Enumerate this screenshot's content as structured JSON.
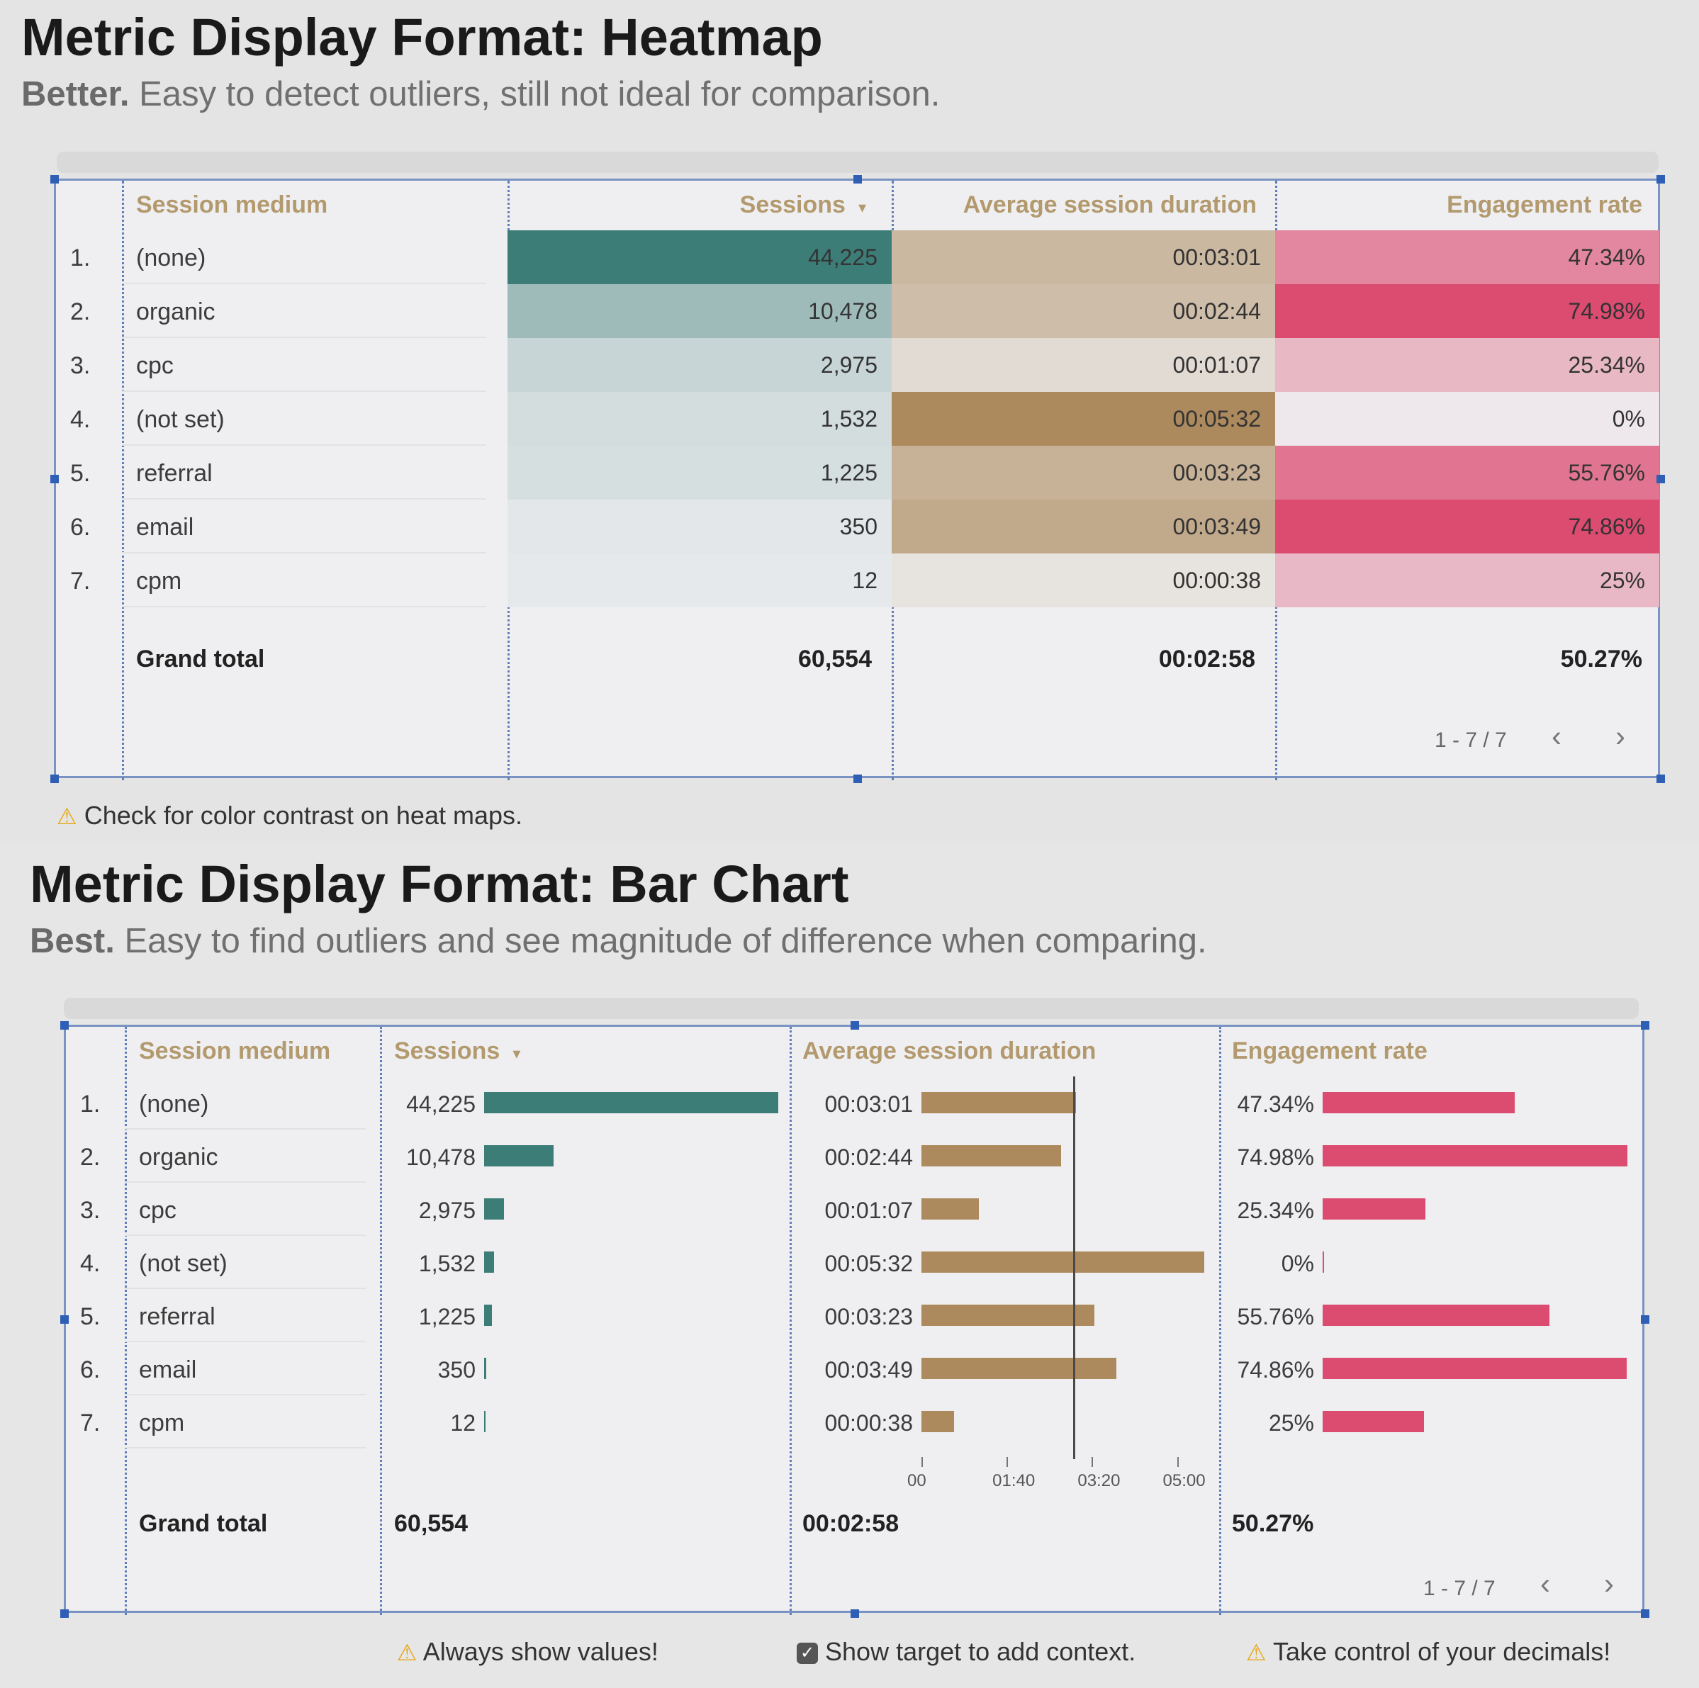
{
  "colors": {
    "teal": "#3d7d78",
    "tan": "#ad8a5d",
    "pink": "#dc4b70"
  },
  "heatmap": {
    "title": "Metric Display Format: Heatmap",
    "sub_bold": "Better.",
    "sub_text": " Easy to detect outliers, still not ideal for comparison.",
    "note": "Check for color contrast on heat maps."
  },
  "barchart": {
    "title": "Metric Display Format: Bar Chart",
    "sub_bold": "Best.",
    "sub_text": " Easy to find outliers and see magnitude of difference when comparing.",
    "notes": [
      "Always show values!",
      "Show target to add context.",
      "Take control of your decimals!"
    ]
  },
  "table": {
    "headers": {
      "medium": "Session medium",
      "sessions": "Sessions",
      "sort_glyph": "▾",
      "duration": "Average session duration",
      "engagement": "Engagement rate"
    },
    "rows": [
      {
        "num": "1.",
        "medium": "(none)",
        "sessions": "44,225",
        "duration": "00:03:01",
        "engagement": "47.34%"
      },
      {
        "num": "2.",
        "medium": "organic",
        "sessions": "10,478",
        "duration": "00:02:44",
        "engagement": "74.98%"
      },
      {
        "num": "3.",
        "medium": "cpc",
        "sessions": "2,975",
        "duration": "00:01:07",
        "engagement": "25.34%"
      },
      {
        "num": "4.",
        "medium": "(not set)",
        "sessions": "1,532",
        "duration": "00:05:32",
        "engagement": "0%"
      },
      {
        "num": "5.",
        "medium": "referral",
        "sessions": "1,225",
        "duration": "00:03:23",
        "engagement": "55.76%"
      },
      {
        "num": "6.",
        "medium": "email",
        "sessions": "350",
        "duration": "00:03:49",
        "engagement": "74.86%"
      },
      {
        "num": "7.",
        "medium": "cpm",
        "sessions": "12",
        "duration": "00:00:38",
        "engagement": "25%"
      }
    ],
    "totals": {
      "label": "Grand total",
      "sessions": "60,554",
      "duration": "00:02:58",
      "engagement": "50.27%"
    },
    "pager": "1 - 7 / 7",
    "prev": "‹",
    "next": "›"
  },
  "chart_data": {
    "type": "table",
    "columns": [
      "Session medium",
      "Sessions",
      "Average session duration (seconds)",
      "Engagement rate (%)"
    ],
    "rows": [
      {
        "medium": "(none)",
        "sessions": 44225,
        "duration_s": 181,
        "engagement_pct": 47.34
      },
      {
        "medium": "organic",
        "sessions": 10478,
        "duration_s": 164,
        "engagement_pct": 74.98
      },
      {
        "medium": "cpc",
        "sessions": 2975,
        "duration_s": 67,
        "engagement_pct": 25.34
      },
      {
        "medium": "(not set)",
        "sessions": 1532,
        "duration_s": 332,
        "engagement_pct": 0
      },
      {
        "medium": "referral",
        "sessions": 1225,
        "duration_s": 203,
        "engagement_pct": 55.76
      },
      {
        "medium": "email",
        "sessions": 350,
        "duration_s": 229,
        "engagement_pct": 74.86
      },
      {
        "medium": "cpm",
        "sessions": 12,
        "duration_s": 38,
        "engagement_pct": 25
      }
    ],
    "sessions_max": 44225,
    "duration_axis": {
      "min": 0,
      "max": 332,
      "ticks": [
        "00",
        "01:40",
        "03:20",
        "05:00"
      ],
      "tick_values": [
        0,
        100,
        200,
        300
      ]
    },
    "duration_target_s": 178,
    "engagement_max": 74.98
  }
}
